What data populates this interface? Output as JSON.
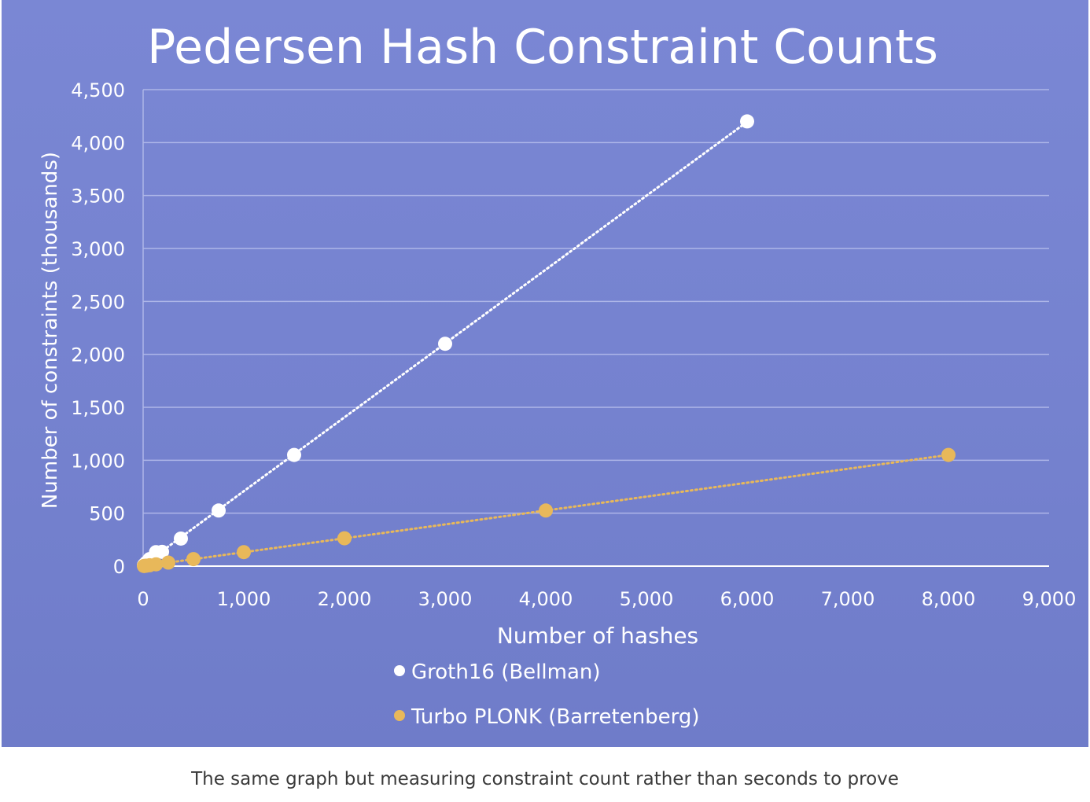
{
  "caption": "The same graph but measuring constraint count rather than seconds to prove",
  "chart_data": {
    "type": "scatter",
    "title": "Pedersen Hash Constraint Counts",
    "xlabel": "Number of hashes",
    "ylabel": "Number of constraints (thousands)",
    "xlim": [
      0,
      9000
    ],
    "ylim": [
      0,
      4500
    ],
    "xticks": [
      "0",
      "1,000",
      "2,000",
      "3,000",
      "4,000",
      "5,000",
      "6,000",
      "7,000",
      "8,000",
      "9,000"
    ],
    "yticks": [
      "0",
      "500",
      "1,000",
      "1,500",
      "2,000",
      "2,500",
      "3,000",
      "3,500",
      "4,000",
      "4,500"
    ],
    "grid": true,
    "legend_position": "bottom",
    "trendline": "linear dotted",
    "series": [
      {
        "name": "Groth16 (Bellman)",
        "color": "#ffffff",
        "x": [
          8,
          16,
          32,
          64,
          128,
          188,
          375,
          750,
          1500,
          3000,
          6000
        ],
        "y": [
          9,
          17,
          33,
          66,
          132,
          135,
          260,
          525,
          1050,
          2100,
          4200
        ]
      },
      {
        "name": "Turbo PLONK (Barretenberg)",
        "color": "#e8b85a",
        "x": [
          8,
          16,
          32,
          64,
          128,
          250,
          500,
          1000,
          2000,
          4000,
          8000
        ],
        "y": [
          1,
          2,
          4,
          8,
          17,
          33,
          66,
          132,
          263,
          525,
          1050
        ]
      }
    ]
  }
}
